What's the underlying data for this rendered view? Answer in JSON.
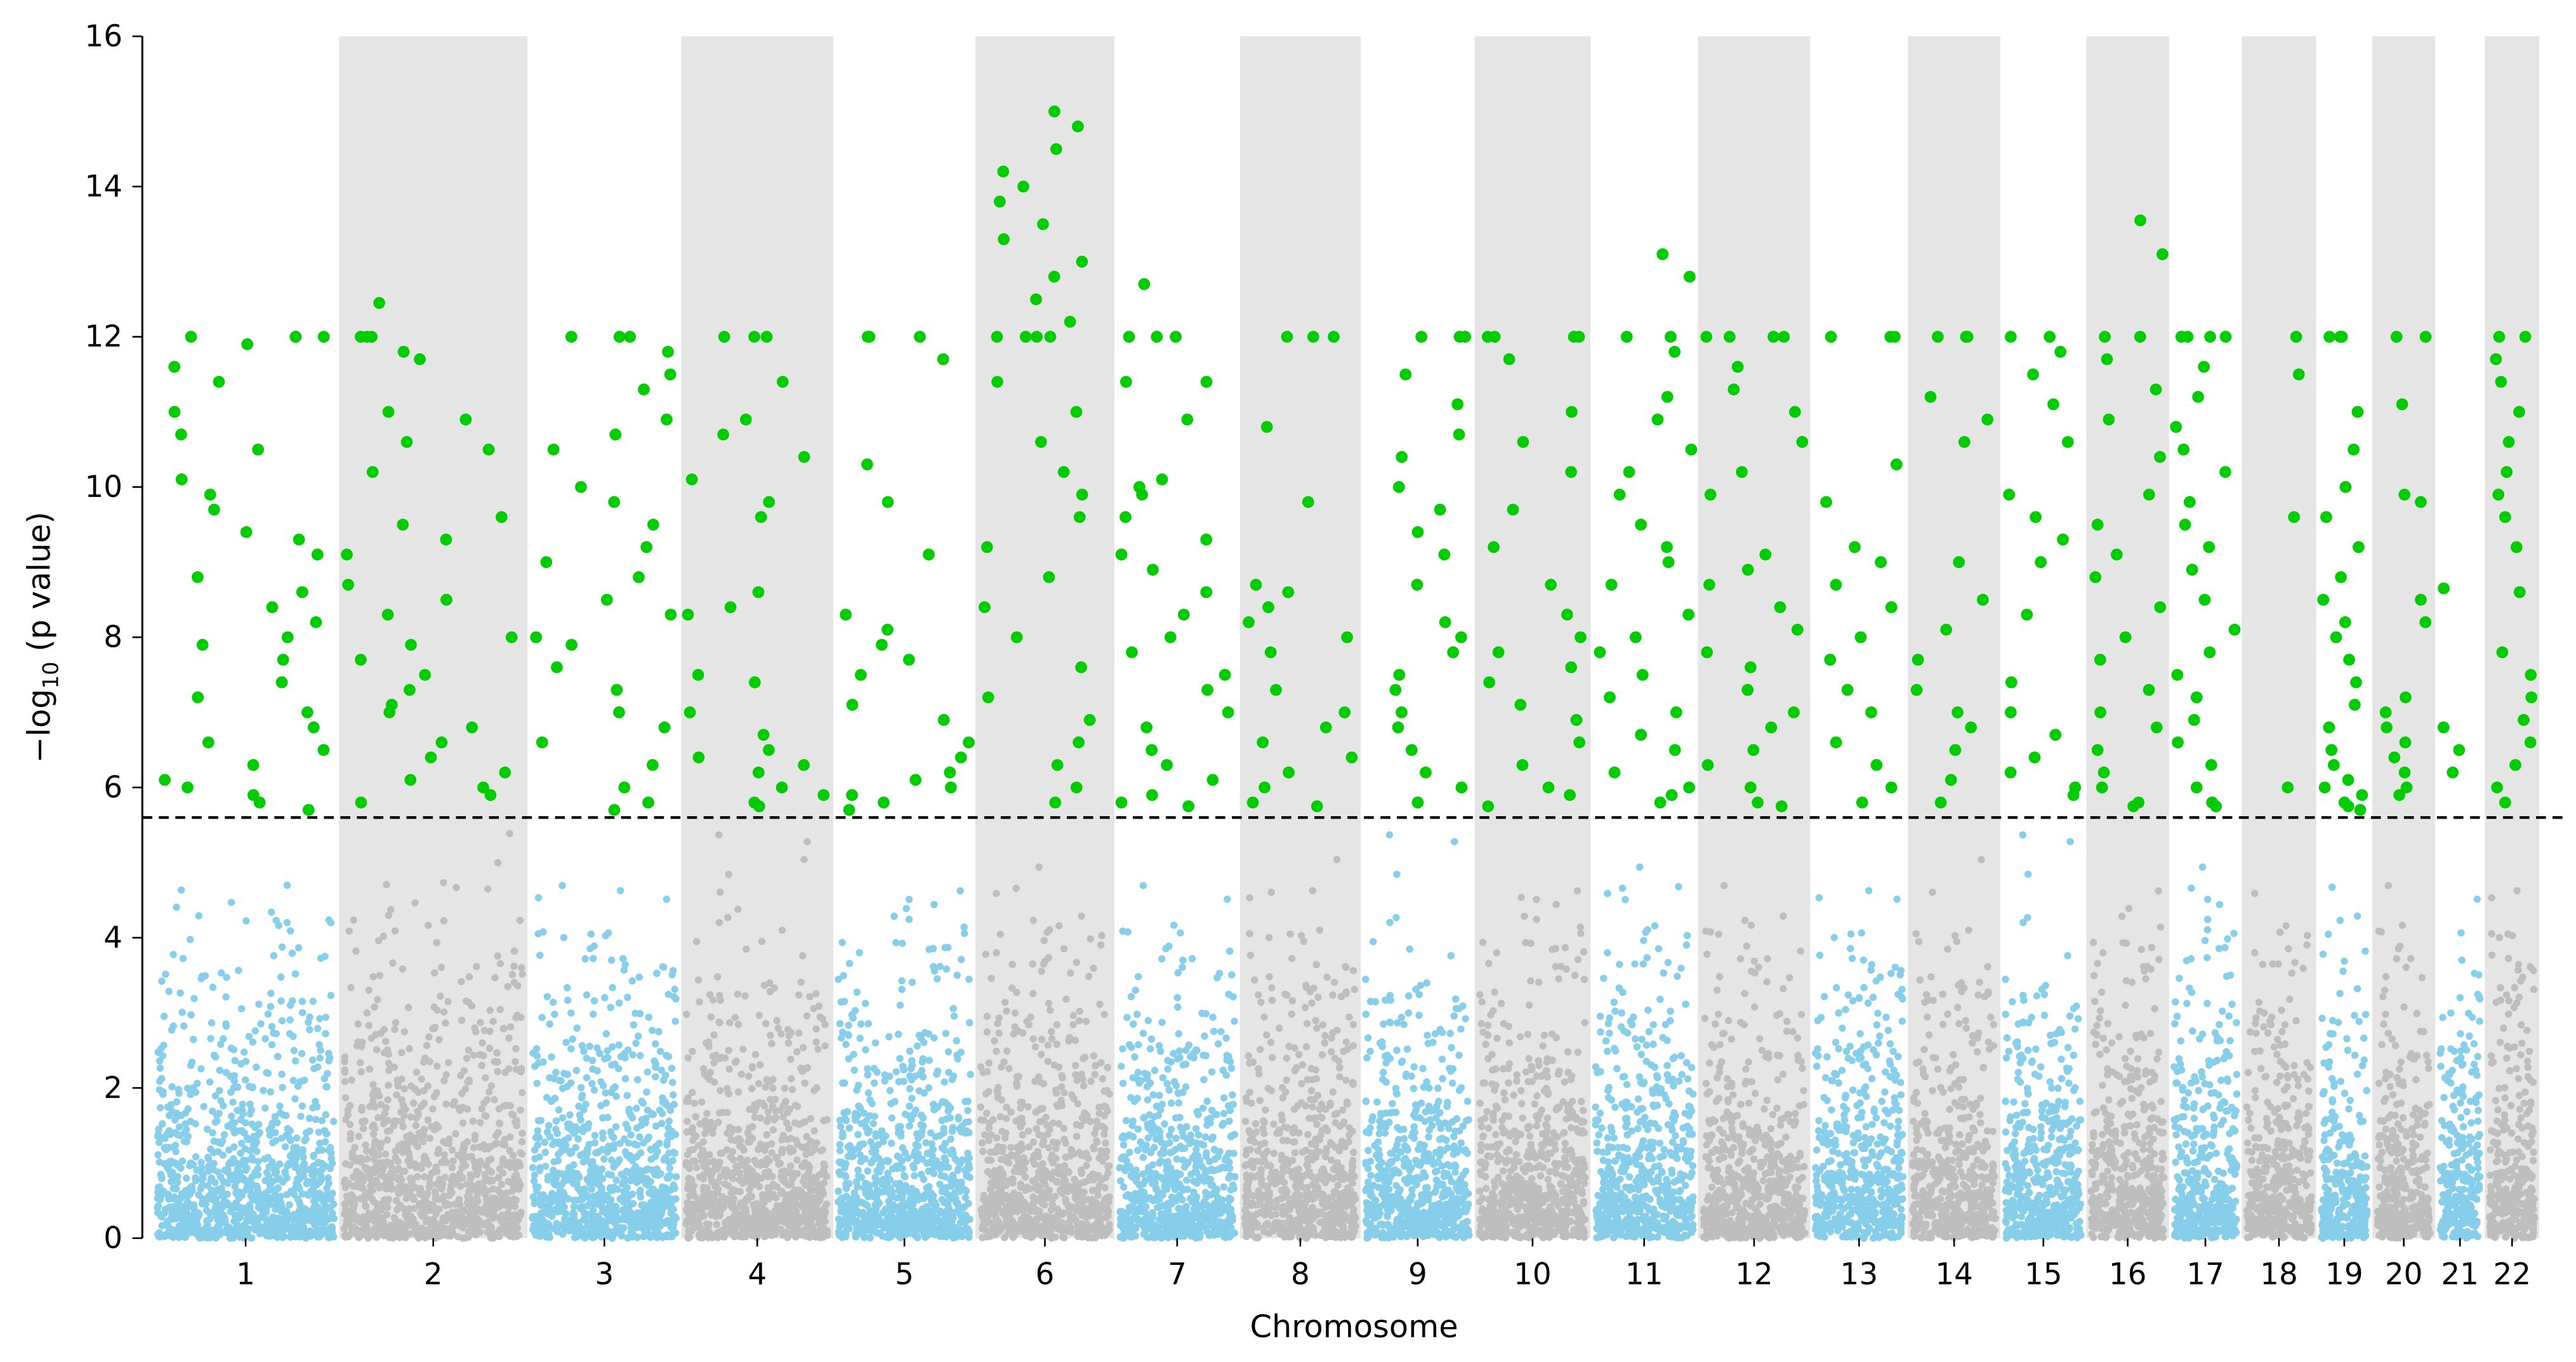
{
  "chart_data": {
    "type": "scatter",
    "subtype": "manhattan",
    "title": "",
    "xlabel": "Chromosome",
    "ylabel_prefix": "−log",
    "ylabel_sub": "10",
    "ylabel_suffix": " (p value)",
    "ylim": [
      0,
      16
    ],
    "yticks": [
      0,
      2,
      4,
      6,
      8,
      10,
      12,
      14,
      16
    ],
    "significance_threshold": 5.6,
    "colors": {
      "odd": "#87ceeb",
      "even": "#bebebe",
      "significant": "#00cc00",
      "band": "#e5e5e5",
      "threshold": "#000000"
    },
    "chromosomes": [
      {
        "label": "1",
        "rel_len": 113,
        "hits": [
          12,
          12,
          12,
          12,
          11.9,
          11.6,
          11.4,
          11,
          10.7,
          10.5,
          10.1,
          9.9,
          9.7,
          9.4,
          9.3,
          9.1,
          8.8,
          8.6,
          8.4,
          8.2,
          8,
          7.9,
          7.7,
          7.4,
          7.2,
          7,
          6.8,
          6.6,
          6.5,
          6.3,
          6.1,
          6,
          5.9,
          5.8,
          5.7
        ]
      },
      {
        "label": "2",
        "rel_len": 114,
        "hits": [
          12.45,
          12,
          12,
          12,
          11.8,
          11.7,
          11,
          10.9,
          10.6,
          10.5,
          10.2,
          9.6,
          9.5,
          9.3,
          9.1,
          8.7,
          8.5,
          8.3,
          8,
          7.9,
          7.7,
          7.5,
          7.3,
          7.1,
          7,
          6.8,
          6.6,
          6.4,
          6.2,
          6.1,
          6,
          5.9,
          5.8
        ]
      },
      {
        "label": "3",
        "rel_len": 93,
        "hits": [
          12,
          12,
          12,
          11.8,
          11.5,
          11.3,
          10.9,
          10.7,
          10.5,
          10,
          9.8,
          9.5,
          9.2,
          9,
          8.8,
          8.5,
          8.3,
          8,
          7.9,
          7.6,
          7.3,
          7,
          6.8,
          6.6,
          6.3,
          6,
          5.8,
          5.7
        ]
      },
      {
        "label": "4",
        "rel_len": 92,
        "hits": [
          12,
          12,
          12,
          11.4,
          10.9,
          10.7,
          10.4,
          10.1,
          9.8,
          9.6,
          8.6,
          8.4,
          8.3,
          7.5,
          7.4,
          7,
          6.7,
          6.5,
          6.4,
          6.3,
          6.2,
          6,
          5.9,
          5.8,
          5.75
        ]
      },
      {
        "label": "5",
        "rel_len": 86,
        "hits": [
          12,
          12,
          12,
          11.7,
          10.3,
          9.8,
          9.1,
          8.3,
          8.1,
          7.9,
          7.7,
          7.5,
          7.1,
          6.9,
          6.6,
          6.4,
          6.2,
          6.1,
          6,
          5.9,
          5.8,
          5.7
        ]
      },
      {
        "label": "6",
        "rel_len": 84,
        "hits": [
          15,
          14.8,
          14.5,
          14.2,
          14,
          13.8,
          13.5,
          13.3,
          13,
          12.8,
          12.5,
          12.2,
          12,
          12,
          12,
          12,
          11.4,
          11,
          10.6,
          10.2,
          9.9,
          9.6,
          9.2,
          8.8,
          8.4,
          8,
          7.6,
          7.2,
          6.9,
          6.6,
          6.3,
          6,
          5.8
        ]
      },
      {
        "label": "7",
        "rel_len": 76,
        "hits": [
          12.7,
          12,
          12,
          12,
          11.4,
          11.4,
          10.9,
          10.1,
          10,
          9.9,
          9.6,
          9.3,
          9.1,
          8.9,
          8.6,
          8.3,
          8,
          7.8,
          7.5,
          7.3,
          7,
          6.8,
          6.5,
          6.3,
          6.1,
          5.9,
          5.8,
          5.75
        ]
      },
      {
        "label": "8",
        "rel_len": 73,
        "hits": [
          12,
          12,
          12,
          10.8,
          9.8,
          8.7,
          8.6,
          8.4,
          8.2,
          8,
          7.8,
          7.3,
          7,
          6.8,
          6.6,
          6.4,
          6.2,
          6,
          5.8,
          5.75
        ]
      },
      {
        "label": "9",
        "rel_len": 69,
        "hits": [
          12,
          12,
          12,
          11.5,
          11.1,
          10.7,
          10.4,
          10,
          9.7,
          9.4,
          9.1,
          8.7,
          8.2,
          8,
          7.8,
          7.5,
          7.3,
          7,
          6.8,
          6.5,
          6.2,
          6,
          5.8
        ]
      },
      {
        "label": "10",
        "rel_len": 70,
        "hits": [
          12,
          12,
          12,
          12,
          11.7,
          11,
          10.6,
          10.2,
          9.7,
          9.2,
          8.7,
          8.3,
          8,
          7.8,
          7.6,
          7.4,
          7.1,
          6.9,
          6.6,
          6.3,
          6,
          5.9,
          5.75
        ]
      },
      {
        "label": "11",
        "rel_len": 65,
        "hits": [
          13.1,
          12.8,
          12,
          12,
          11.8,
          11.2,
          10.9,
          10.5,
          10.2,
          9.9,
          9.5,
          9.2,
          9,
          8.7,
          8.3,
          8,
          7.8,
          7.5,
          7.2,
          7,
          6.7,
          6.5,
          6.2,
          6,
          5.9,
          5.8
        ]
      },
      {
        "label": "12",
        "rel_len": 68,
        "hits": [
          12,
          12,
          12,
          12,
          11.6,
          11.3,
          11,
          10.6,
          10.2,
          9.9,
          9.1,
          8.9,
          8.7,
          8.4,
          8.1,
          7.8,
          7.6,
          7.3,
          7,
          6.8,
          6.5,
          6.3,
          6,
          5.8,
          5.75
        ]
      },
      {
        "label": "13",
        "rel_len": 59,
        "hits": [
          12,
          12,
          12,
          10.3,
          9.8,
          9.2,
          9,
          8.7,
          8.4,
          8,
          7.7,
          7.3,
          7,
          6.6,
          6.3,
          6,
          5.8
        ]
      },
      {
        "label": "14",
        "rel_len": 56,
        "hits": [
          12,
          12,
          12,
          11.2,
          10.9,
          10.6,
          9,
          8.5,
          8.1,
          7.7,
          7.3,
          7,
          6.8,
          6.5,
          6.1,
          5.8
        ]
      },
      {
        "label": "15",
        "rel_len": 52,
        "hits": [
          12,
          12,
          11.8,
          11.5,
          11.1,
          10.6,
          9.9,
          9.6,
          9.3,
          9,
          8.3,
          7.4,
          7,
          6.7,
          6.4,
          6.2,
          6,
          5.9
        ]
      },
      {
        "label": "16",
        "rel_len": 50,
        "hits": [
          13.55,
          13.1,
          12,
          12,
          11.7,
          11.3,
          10.9,
          10.4,
          9.9,
          9.5,
          9.1,
          8.8,
          8.4,
          8,
          7.7,
          7.3,
          7,
          6.8,
          6.5,
          6.2,
          6,
          5.8,
          5.75
        ]
      },
      {
        "label": "17",
        "rel_len": 44,
        "hits": [
          12,
          12,
          12,
          12,
          11.6,
          11.2,
          10.8,
          10.5,
          10.2,
          9.8,
          9.5,
          9.2,
          8.9,
          8.5,
          8.1,
          7.8,
          7.5,
          7.2,
          6.9,
          6.6,
          6.3,
          6,
          5.8,
          5.75
        ]
      },
      {
        "label": "18",
        "rel_len": 45,
        "hits": [
          12,
          11.5,
          9.6,
          6
        ]
      },
      {
        "label": "19",
        "rel_len": 34,
        "hits": [
          12,
          12,
          12,
          11,
          10.5,
          10,
          9.6,
          9.2,
          8.8,
          8.5,
          8.2,
          8,
          7.7,
          7.4,
          7.1,
          6.8,
          6.5,
          6.3,
          6.1,
          6,
          5.9,
          5.8,
          5.75,
          5.7
        ]
      },
      {
        "label": "20",
        "rel_len": 38,
        "hits": [
          12,
          12,
          11.1,
          9.9,
          9.8,
          8.5,
          8.2,
          7.2,
          7,
          6.8,
          6.6,
          6.4,
          6.2,
          6,
          5.9
        ]
      },
      {
        "label": "21",
        "rel_len": 30,
        "hits": [
          8.65,
          6.8,
          6.5,
          6.2
        ]
      },
      {
        "label": "22",
        "rel_len": 33,
        "hits": [
          12,
          12,
          11.7,
          11.4,
          11,
          10.6,
          10.2,
          9.9,
          9.6,
          9.2,
          8.6,
          7.8,
          7.5,
          7.2,
          6.9,
          6.6,
          6.3,
          6,
          5.8
        ]
      }
    ]
  }
}
